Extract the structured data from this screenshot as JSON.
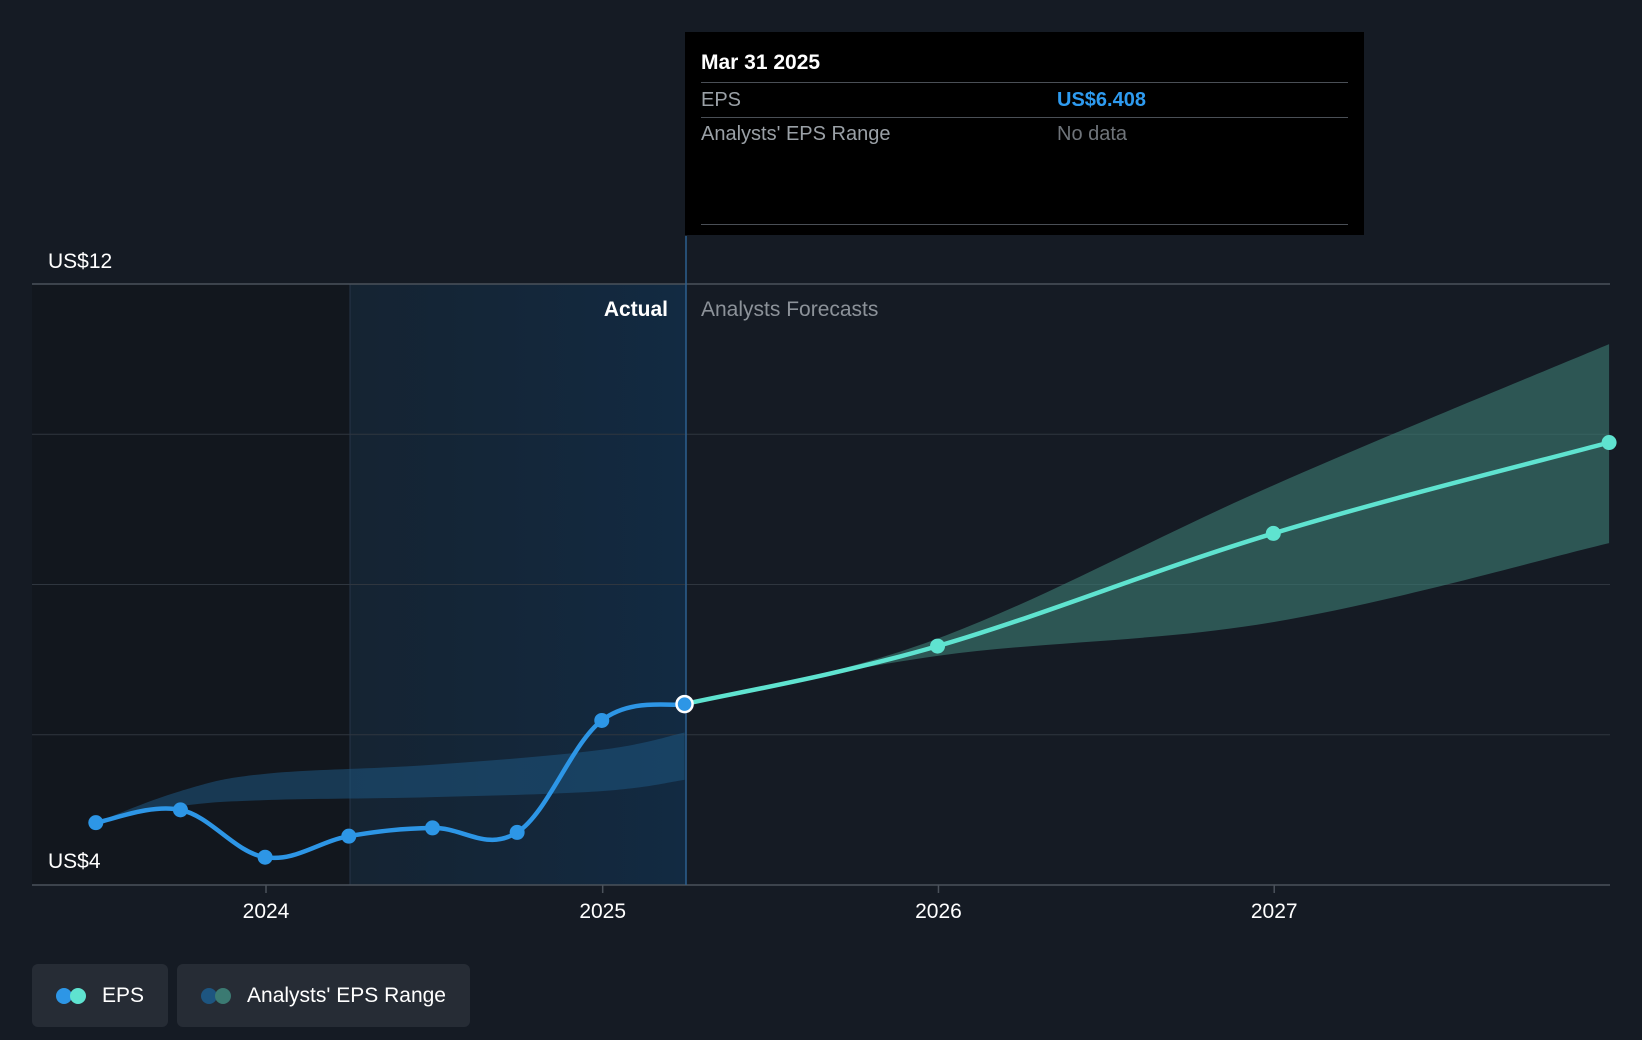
{
  "chart_data": {
    "type": "line",
    "y_axis": {
      "ticks": [
        "US$4",
        "US$12"
      ],
      "ylim": [
        4,
        12
      ],
      "gridlines": [
        4,
        6,
        8,
        10,
        12
      ]
    },
    "x_axis": {
      "tick_labels": [
        "2024",
        "2025",
        "2026",
        "2027"
      ]
    },
    "sections": {
      "actual_label": "Actual",
      "forecast_label": "Analysts Forecasts"
    },
    "series": [
      {
        "name": "EPS",
        "color": "#2d96e6",
        "points": [
          {
            "x": "2023-06-30",
            "y": 4.83
          },
          {
            "x": "2023-09-30",
            "y": 5.0
          },
          {
            "x": "2023-12-31",
            "y": 4.37
          },
          {
            "x": "2024-03-31",
            "y": 4.65
          },
          {
            "x": "2024-06-30",
            "y": 4.76
          },
          {
            "x": "2024-09-30",
            "y": 4.7
          },
          {
            "x": "2024-12-31",
            "y": 6.19
          },
          {
            "x": "2025-03-31",
            "y": 6.408
          }
        ]
      },
      {
        "name": "EPS",
        "color": "#5fe3d0",
        "points": [
          {
            "x": "2025-03-31",
            "y": 6.408
          },
          {
            "x": "2025-12-31",
            "y": 7.18
          },
          {
            "x": "2026-12-31",
            "y": 8.68
          },
          {
            "x": "2027-12-31",
            "y": 9.89
          }
        ]
      }
    ],
    "ranges": [
      {
        "name": "Analysts' EPS Range",
        "color": "#1d5580",
        "points": [
          {
            "x": "2023-06-30",
            "low": 4.83,
            "high": 4.83
          },
          {
            "x": "2023-09-30",
            "low": 5.05,
            "high": 5.25
          },
          {
            "x": "2023-12-31",
            "low": 5.13,
            "high": 5.48
          },
          {
            "x": "2024-06-30",
            "low": 5.17,
            "high": 5.6
          },
          {
            "x": "2024-12-31",
            "low": 5.25,
            "high": 5.8
          },
          {
            "x": "2025-03-31",
            "low": 5.4,
            "high": 6.03
          }
        ]
      },
      {
        "name": "Analysts' EPS Range",
        "color": "#3b7a72",
        "points": [
          {
            "x": "2025-03-31",
            "low": 6.408,
            "high": 6.408
          },
          {
            "x": "2025-12-31",
            "low": 7.05,
            "high": 7.28
          },
          {
            "x": "2026-12-31",
            "low": 7.5,
            "high": 9.32
          },
          {
            "x": "2027-12-31",
            "low": 8.55,
            "high": 11.2
          }
        ]
      }
    ],
    "highlight": {
      "x": "2025-03-31",
      "y": 6.408
    }
  },
  "tooltip": {
    "date": "Mar 31 2025",
    "eps_label": "EPS",
    "eps_value": "US$6.408",
    "range_label": "Analysts' EPS Range",
    "range_value": "No data"
  },
  "legend": {
    "items": [
      {
        "label": "EPS",
        "colors": [
          "#2d96e6",
          "#5fe3d0"
        ]
      },
      {
        "label": "Analysts' EPS Range",
        "colors": [
          "#1d5580",
          "#3b7a72"
        ]
      }
    ]
  }
}
